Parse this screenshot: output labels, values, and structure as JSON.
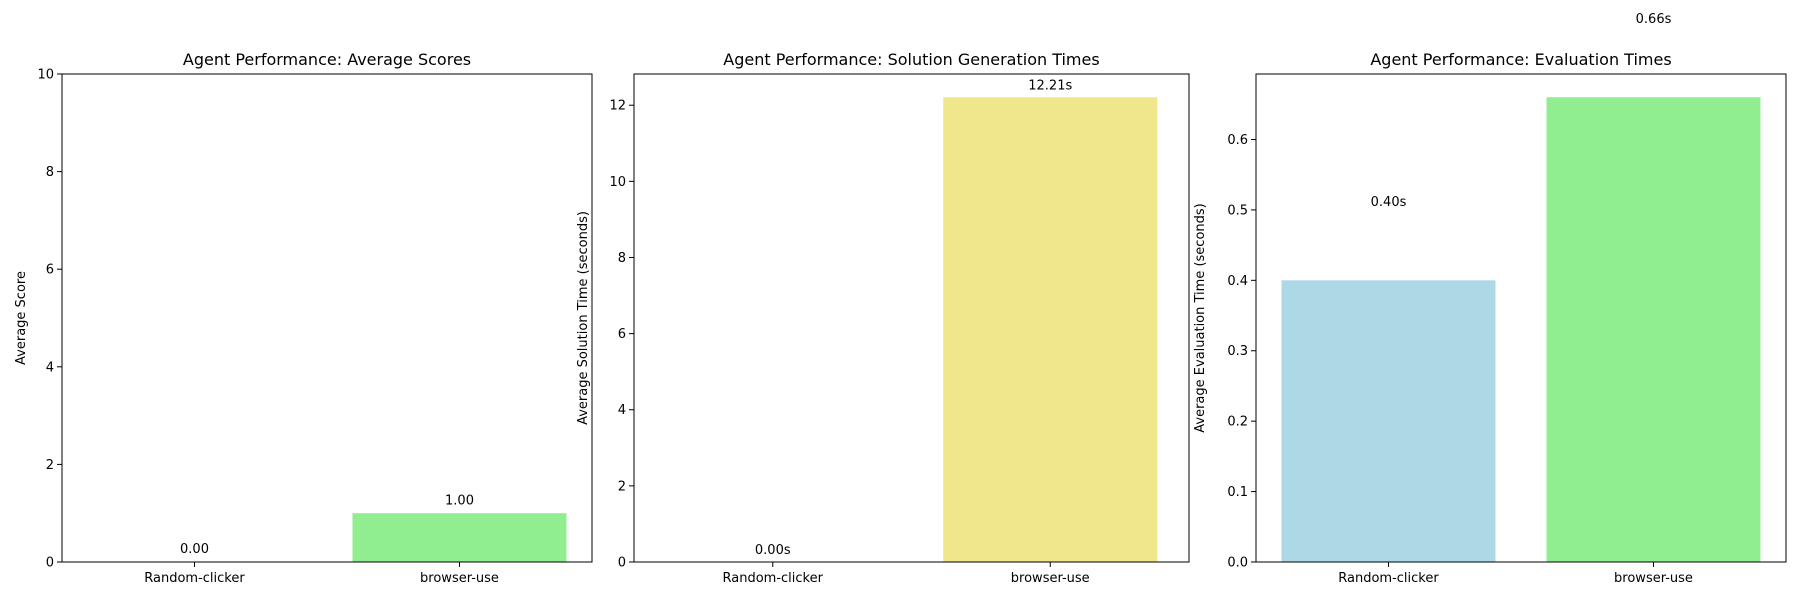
{
  "chart_data": [
    {
      "type": "bar",
      "title": "Agent Performance: Average Scores",
      "xlabel": "",
      "ylabel": "Average Score",
      "categories": [
        "Random-clicker",
        "browser-use"
      ],
      "values": [
        0.0,
        1.0
      ],
      "value_labels": [
        "0.00",
        "1.00"
      ],
      "value_label_y": [
        0.1,
        1.1
      ],
      "colors": [
        "#add8e6",
        "#90ee90"
      ],
      "ylim": [
        0,
        10
      ],
      "yticks": [
        0,
        2,
        4,
        6,
        8,
        10
      ],
      "ytick_labels": [
        "0",
        "2",
        "4",
        "6",
        "8",
        "10"
      ],
      "grid": false
    },
    {
      "type": "bar",
      "title": "Agent Performance: Solution Generation Times",
      "xlabel": "",
      "ylabel": "Average Solution Time (seconds)",
      "categories": [
        "Random-clicker",
        "browser-use"
      ],
      "values": [
        0.0,
        12.21
      ],
      "value_labels": [
        "0.00s",
        "12.21s"
      ],
      "value_label_y": [
        0.1,
        12.31
      ],
      "colors": [
        "#add8e6",
        "#f0e68c"
      ],
      "ylim": [
        0,
        12.82
      ],
      "yticks": [
        0,
        2,
        4,
        6,
        8,
        10,
        12
      ],
      "ytick_labels": [
        "0",
        "2",
        "4",
        "6",
        "8",
        "10",
        "12"
      ],
      "grid": false
    },
    {
      "type": "bar",
      "title": "Agent Performance: Evaluation Times",
      "xlabel": "",
      "ylabel": "Average Evaluation Time (seconds)",
      "categories": [
        "Random-clicker",
        "browser-use"
      ],
      "values": [
        0.4,
        0.66
      ],
      "value_labels": [
        "0.40s",
        "0.66s"
      ],
      "value_label_y": [
        0.5,
        0.76
      ],
      "colors": [
        "#add8e6",
        "#90ee90"
      ],
      "ylim": [
        0,
        0.693
      ],
      "yticks": [
        0.0,
        0.1,
        0.2,
        0.3,
        0.4,
        0.5,
        0.6
      ],
      "ytick_labels": [
        "0.0",
        "0.1",
        "0.2",
        "0.3",
        "0.4",
        "0.5",
        "0.6"
      ],
      "grid": false
    }
  ]
}
